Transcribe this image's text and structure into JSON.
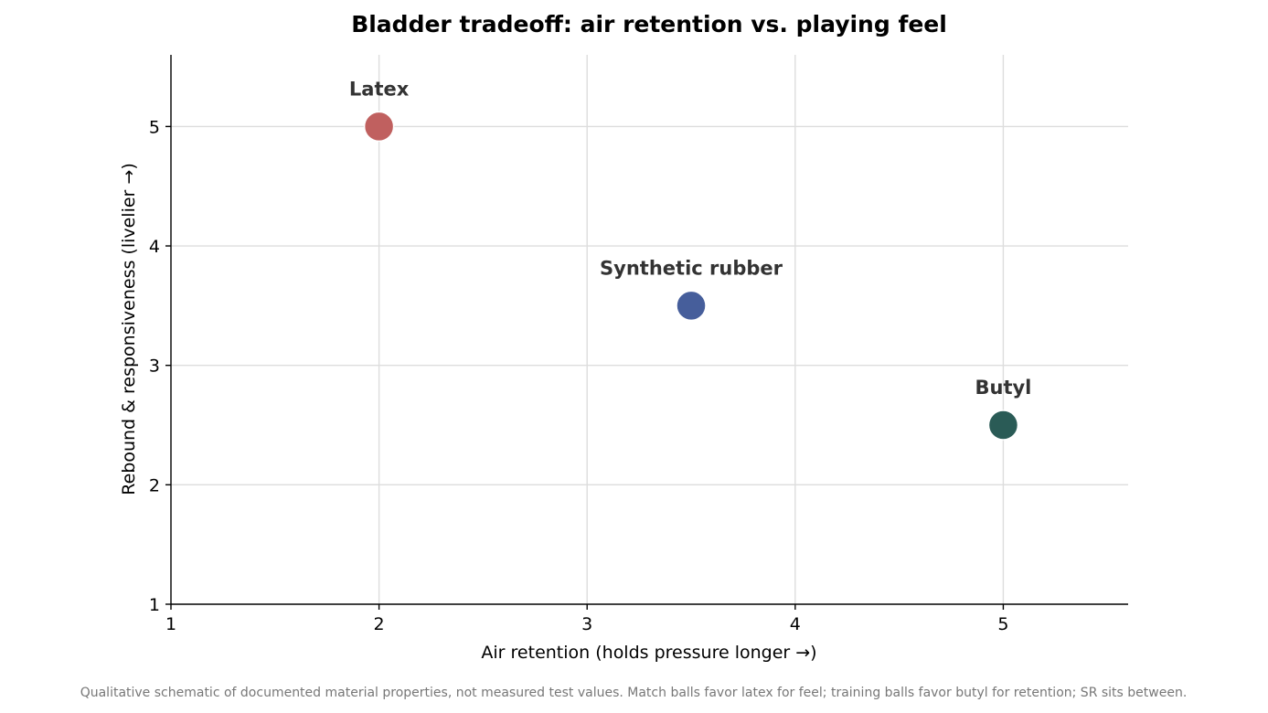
{
  "chart_data": {
    "type": "scatter",
    "title": "Bladder tradeoff: air retention vs. playing feel",
    "xlabel": "Air retention  (holds pressure longer →)",
    "ylabel": "Rebound & responsiveness  (livelier →)",
    "xlim": [
      1,
      5.6
    ],
    "ylim": [
      1,
      5.6
    ],
    "xticks": [
      "1",
      "2",
      "3",
      "4",
      "5"
    ],
    "yticks": [
      "1",
      "2",
      "3",
      "4",
      "5"
    ],
    "grid": true,
    "points": [
      {
        "label": "Latex",
        "x": 2,
        "y": 5,
        "color": "#c0605f"
      },
      {
        "label": "Synthetic rubber",
        "x": 3.5,
        "y": 3.5,
        "color": "#465e9b"
      },
      {
        "label": "Butyl",
        "x": 5,
        "y": 2.5,
        "color": "#2a5b56"
      }
    ],
    "footnote": "Qualitative schematic of documented material properties, not measured test values. Match balls favor latex for feel; training balls favor butyl for retention; SR sits between."
  }
}
